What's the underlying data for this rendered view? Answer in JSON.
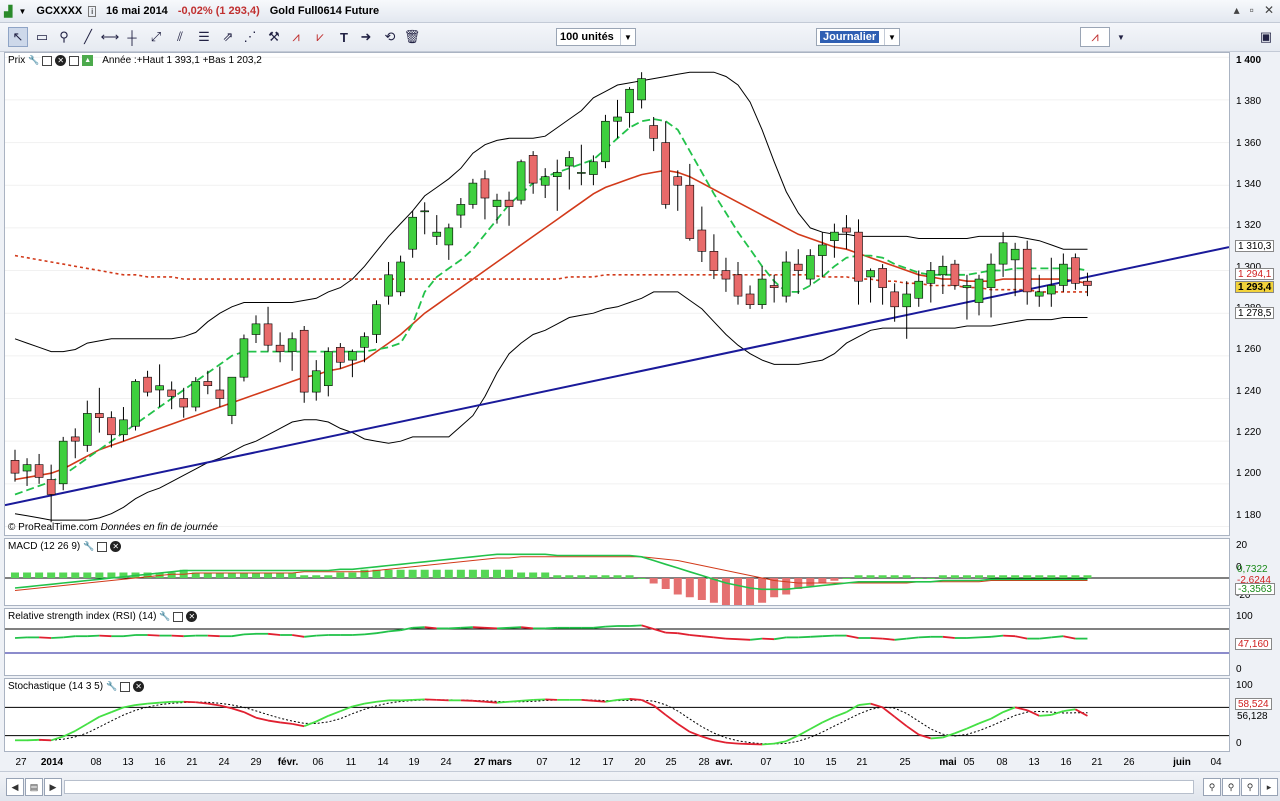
{
  "window": {
    "symbol": "GCXXXX",
    "date": "16 mai 2014",
    "change": "-0,02% (1 293,4)",
    "instrument": "Gold Full0614 Future"
  },
  "toolbar": {
    "units_value": "100 unités",
    "period_value": "Journalier",
    "icons": [
      "pointer-icon",
      "ruler-icon",
      "zoom-icon",
      "line-icon",
      "horizontal-line-icon",
      "trend-line-icon",
      "channel-icon",
      "fibonacci-icon",
      "arrow-icon",
      "fan-icon",
      "hammer-icon",
      "zigzag-icon",
      "pattern-icon",
      "text-icon",
      "arrow-right-icon",
      "lasso-icon",
      "trash-icon"
    ]
  },
  "price_panel": {
    "label": "Prix",
    "legend": "Année :+Haut 1 393,1 +Bas 1 203,2",
    "credit": "© ProRealTime.com",
    "credit_note": "Données en fin de journée",
    "y_ticks": [
      "1 400",
      "1 380",
      "1 360",
      "1 340",
      "1 320",
      "1 300",
      "1 280",
      "1 260",
      "1 240",
      "1 220",
      "1 200",
      "1 180"
    ],
    "tags": [
      {
        "text": "1 310,3",
        "bg": "#ffffff",
        "fg": "#000000"
      },
      {
        "text": "1 294,1",
        "bg": "#ffffff",
        "fg": "#d02020"
      },
      {
        "text": "1 293,4",
        "bg": "#f2d23a",
        "fg": "#000000"
      },
      {
        "text": "1 278,5",
        "bg": "#ffffff",
        "fg": "#000000"
      }
    ]
  },
  "macd_panel": {
    "label": "MACD (12 26 9)",
    "y_ticks": [
      "20",
      "0",
      "-20"
    ],
    "tags": [
      {
        "text": "0,7322",
        "fg": "#1a8a1a"
      },
      {
        "text": "-2,6244",
        "fg": "#d02020"
      },
      {
        "text": "-3,3563",
        "fg": "#1a8a1a"
      }
    ]
  },
  "rsi_panel": {
    "label": "Relative strength index (RSI) (14)",
    "y_ticks": [
      "100",
      "0"
    ],
    "tags": [
      {
        "text": "47,160",
        "fg": "#d02020"
      }
    ]
  },
  "stoch_panel": {
    "label": "Stochastique (14 3 5)",
    "y_ticks": [
      "100",
      "0"
    ],
    "tags": [
      {
        "text": "58,524",
        "fg": "#d02020"
      },
      {
        "text": "56,128",
        "fg": "#000000"
      }
    ]
  },
  "x_axis": {
    "labels": [
      "27",
      "2014",
      "08",
      "13",
      "16",
      "21",
      "24",
      "29",
      "févr.",
      "06",
      "11",
      "14",
      "19",
      "24",
      "27 mars",
      "07",
      "12",
      "17",
      "20",
      "25",
      "28",
      "avr.",
      "07",
      "10",
      "15",
      "21",
      "25",
      "mai",
      "05",
      "08",
      "13",
      "16",
      "21",
      "26",
      "juin",
      "04"
    ]
  },
  "bottom_icons": [
    "scroll-left-icon",
    "pan-icon",
    "scroll-right-icon",
    "zoom-out-icon",
    "zoom-reset-icon",
    "zoom-in-icon",
    "rewind-icon",
    "fast-forward-icon"
  ],
  "colors": {
    "up": "#3ecf3e",
    "down": "#e86a6a",
    "trendline": "#1a1a9a",
    "ma_red": "#d23a1a",
    "ma_green": "#22c24a",
    "bollinger": "#000000"
  },
  "chart_data": {
    "type": "candlestick",
    "ylim": [
      1176,
      1402
    ],
    "candles": [
      [
        1211,
        1216,
        1201,
        1205
      ],
      [
        1206,
        1212,
        1199,
        1209
      ],
      [
        1209,
        1214,
        1200,
        1203
      ],
      [
        1202,
        1209,
        1182,
        1195
      ],
      [
        1200,
        1222,
        1197,
        1220
      ],
      [
        1222,
        1226,
        1212,
        1220
      ],
      [
        1218,
        1239,
        1215,
        1233
      ],
      [
        1233,
        1245,
        1224,
        1231
      ],
      [
        1231,
        1234,
        1217,
        1223
      ],
      [
        1223,
        1236,
        1220,
        1230
      ],
      [
        1227,
        1249,
        1225,
        1248
      ],
      [
        1250,
        1253,
        1241,
        1243
      ],
      [
        1244,
        1256,
        1236,
        1246
      ],
      [
        1244,
        1248,
        1235,
        1241
      ],
      [
        1240,
        1245,
        1231,
        1236
      ],
      [
        1236,
        1250,
        1234,
        1248
      ],
      [
        1248,
        1253,
        1242,
        1246
      ],
      [
        1244,
        1255,
        1236,
        1240
      ],
      [
        1232,
        1250,
        1228,
        1250
      ],
      [
        1250,
        1270,
        1248,
        1268
      ],
      [
        1270,
        1279,
        1266,
        1275
      ],
      [
        1275,
        1283,
        1262,
        1265
      ],
      [
        1265,
        1271,
        1257,
        1262
      ],
      [
        1262,
        1271,
        1253,
        1268
      ],
      [
        1272,
        1274,
        1238,
        1243
      ],
      [
        1243,
        1258,
        1239,
        1253
      ],
      [
        1246,
        1264,
        1241,
        1262
      ],
      [
        1264,
        1266,
        1254,
        1257
      ],
      [
        1258,
        1263,
        1250,
        1262
      ],
      [
        1264,
        1271,
        1257,
        1269
      ],
      [
        1270,
        1286,
        1266,
        1284
      ],
      [
        1288,
        1304,
        1284,
        1298
      ],
      [
        1290,
        1307,
        1288,
        1304
      ],
      [
        1310,
        1328,
        1306,
        1325
      ],
      [
        1328,
        1332,
        1317,
        1328
      ],
      [
        1316,
        1326,
        1312,
        1318
      ],
      [
        1312,
        1322,
        1305,
        1320
      ],
      [
        1326,
        1334,
        1320,
        1331
      ],
      [
        1331,
        1343,
        1329,
        1341
      ],
      [
        1343,
        1347,
        1324,
        1334
      ],
      [
        1330,
        1336,
        1322,
        1333
      ],
      [
        1333,
        1337,
        1321,
        1330
      ],
      [
        1333,
        1352,
        1331,
        1351
      ],
      [
        1354,
        1356,
        1336,
        1341
      ],
      [
        1340,
        1348,
        1334,
        1344
      ],
      [
        1344,
        1352,
        1328,
        1346
      ],
      [
        1349,
        1356,
        1338,
        1353
      ],
      [
        1346,
        1359,
        1340,
        1346
      ],
      [
        1345,
        1354,
        1340,
        1351
      ],
      [
        1351,
        1373,
        1348,
        1370
      ],
      [
        1370,
        1380,
        1362,
        1372
      ],
      [
        1374,
        1386,
        1367,
        1385
      ],
      [
        1380,
        1393,
        1376,
        1390
      ],
      [
        1368,
        1372,
        1356,
        1362
      ],
      [
        1360,
        1370,
        1329,
        1331
      ],
      [
        1344,
        1347,
        1328,
        1340
      ],
      [
        1340,
        1350,
        1314,
        1315
      ],
      [
        1319,
        1330,
        1304,
        1309
      ],
      [
        1309,
        1317,
        1296,
        1300
      ],
      [
        1300,
        1306,
        1290,
        1296
      ],
      [
        1298,
        1304,
        1284,
        1288
      ],
      [
        1289,
        1293,
        1282,
        1284
      ],
      [
        1284,
        1302,
        1282,
        1296
      ],
      [
        1293,
        1298,
        1285,
        1292
      ],
      [
        1288,
        1309,
        1285,
        1304
      ],
      [
        1303,
        1310,
        1289,
        1300
      ],
      [
        1296,
        1310,
        1293,
        1307
      ],
      [
        1307,
        1318,
        1297,
        1312
      ],
      [
        1314,
        1322,
        1306,
        1318
      ],
      [
        1320,
        1326,
        1310,
        1318
      ],
      [
        1318,
        1324,
        1284,
        1295
      ],
      [
        1297,
        1301,
        1285,
        1300
      ],
      [
        1301,
        1303,
        1284,
        1292
      ],
      [
        1290,
        1294,
        1276,
        1283
      ],
      [
        1283,
        1295,
        1268,
        1289
      ],
      [
        1287,
        1300,
        1283,
        1295
      ],
      [
        1294,
        1304,
        1285,
        1300
      ],
      [
        1298,
        1307,
        1289,
        1302
      ],
      [
        1303,
        1305,
        1291,
        1293
      ],
      [
        1292,
        1298,
        1277,
        1293
      ],
      [
        1285,
        1298,
        1279,
        1296
      ],
      [
        1292,
        1308,
        1278,
        1303
      ],
      [
        1303,
        1318,
        1297,
        1313
      ],
      [
        1305,
        1313,
        1288,
        1310
      ],
      [
        1310,
        1314,
        1284,
        1290
      ],
      [
        1288,
        1298,
        1283,
        1290
      ],
      [
        1289,
        1306,
        1283,
        1293
      ],
      [
        1293,
        1308,
        1290,
        1303
      ],
      [
        1306,
        1308,
        1291,
        1294
      ],
      [
        1295,
        1299,
        1288,
        1293
      ]
    ],
    "bollinger_upper": [
      1268,
      1266,
      1264,
      1262,
      1262,
      1263,
      1266,
      1267,
      1268,
      1268,
      1268,
      1268,
      1268,
      1268,
      1269,
      1271,
      1276,
      1280,
      1283,
      1285,
      1285,
      1285,
      1285,
      1285,
      1286,
      1287,
      1290,
      1292,
      1296,
      1302,
      1309,
      1316,
      1322,
      1328,
      1335,
      1339,
      1343,
      1348,
      1355,
      1359,
      1361,
      1362,
      1362,
      1362,
      1363,
      1367,
      1371,
      1375,
      1381,
      1384,
      1387,
      1388,
      1389,
      1390,
      1391,
      1392,
      1393,
      1393,
      1393,
      1391,
      1387,
      1379,
      1366,
      1351,
      1337,
      1327,
      1320,
      1318,
      1317,
      1317,
      1316,
      1316,
      1316,
      1316,
      1316,
      1315,
      1315,
      1315,
      1315,
      1315,
      1316,
      1316,
      1316,
      1316,
      1315,
      1314,
      1312,
      1310,
      1310,
      1310
    ],
    "bollinger_lower": [
      1186,
      1185,
      1184,
      1183,
      1183,
      1183,
      1183,
      1184,
      1186,
      1189,
      1193,
      1196,
      1198,
      1201,
      1204,
      1207,
      1210,
      1212,
      1215,
      1218,
      1220,
      1223,
      1226,
      1229,
      1230,
      1230,
      1229,
      1226,
      1224,
      1221,
      1220,
      1219,
      1220,
      1222,
      1222,
      1222,
      1222,
      1227,
      1232,
      1241,
      1252,
      1261,
      1266,
      1270,
      1272,
      1275,
      1278,
      1279,
      1280,
      1282,
      1283,
      1285,
      1287,
      1290,
      1290,
      1290,
      1286,
      1282,
      1276,
      1270,
      1265,
      1261,
      1258,
      1256,
      1256,
      1256,
      1257,
      1258,
      1261,
      1266,
      1269,
      1272,
      1273,
      1273,
      1273,
      1273,
      1273,
      1273,
      1273,
      1274,
      1274,
      1274,
      1275,
      1276,
      1277,
      1277,
      1277,
      1278,
      1278,
      1278
    ],
    "ma20": [
      1202,
      1203,
      1204,
      1205,
      1207,
      1210,
      1213,
      1216,
      1218,
      1220,
      1222,
      1224,
      1226,
      1228,
      1230,
      1232,
      1234,
      1236,
      1238,
      1240,
      1242,
      1244,
      1246,
      1248,
      1250,
      1251,
      1253,
      1254,
      1256,
      1258,
      1262,
      1266,
      1270,
      1275,
      1280,
      1284,
      1288,
      1292,
      1296,
      1300,
      1304,
      1308,
      1312,
      1316,
      1320,
      1324,
      1328,
      1332,
      1336,
      1339,
      1341,
      1343,
      1345,
      1346,
      1347,
      1346,
      1344,
      1341,
      1338,
      1335,
      1332,
      1329,
      1326,
      1323,
      1320,
      1317,
      1315,
      1313,
      1311,
      1310,
      1308,
      1306,
      1304,
      1302,
      1300,
      1298,
      1297,
      1296,
      1296,
      1295,
      1295,
      1295,
      1296,
      1296,
      1296,
      1296,
      1296,
      1296,
      1295,
      1294
    ],
    "ma10": [
      1195,
      1197,
      1199,
      1201,
      1204,
      1208,
      1212,
      1216,
      1220,
      1224,
      1228,
      1232,
      1236,
      1240,
      1244,
      1248,
      1252,
      1256,
      1260,
      1262,
      1262,
      1262,
      1262,
      1262,
      1262,
      1262,
      1262,
      1262,
      1262,
      1262,
      1263,
      1264,
      1266,
      1275,
      1290,
      1297,
      1301,
      1305,
      1310,
      1317,
      1324,
      1331,
      1336,
      1341,
      1344,
      1346,
      1348,
      1350,
      1352,
      1357,
      1362,
      1367,
      1370,
      1371,
      1370,
      1366,
      1356,
      1346,
      1336,
      1327,
      1318,
      1310,
      1302,
      1295,
      1290,
      1290,
      1293,
      1297,
      1302,
      1306,
      1307,
      1307,
      1306,
      1303,
      1301,
      1299,
      1298,
      1298,
      1298,
      1298,
      1299,
      1300,
      1300,
      1301,
      1301,
      1301,
      1301,
      1301,
      1301,
      1300
    ],
    "ma200": [
      1307,
      1306,
      1305,
      1304,
      1303,
      1302,
      1301,
      1300,
      1299,
      1298,
      1298,
      1297,
      1297,
      1297,
      1296,
      1296,
      1296,
      1296,
      1296,
      1296,
      1296,
      1296,
      1296,
      1296,
      1296,
      1296,
      1296,
      1296,
      1296,
      1296,
      1296,
      1296,
      1296,
      1296,
      1296,
      1296,
      1296,
      1296,
      1296,
      1296,
      1296,
      1296,
      1296,
      1296,
      1296,
      1296,
      1297,
      1297,
      1297,
      1298,
      1298,
      1298,
      1298,
      1298,
      1298,
      1298,
      1298,
      1298,
      1298,
      1298,
      1298,
      1298,
      1298,
      1298,
      1298,
      1298,
      1298,
      1297,
      1297,
      1297,
      1296,
      1296,
      1295,
      1295,
      1294,
      1294,
      1293,
      1293,
      1293,
      1292,
      1292,
      1291,
      1291,
      1291,
      1291,
      1290,
      1290,
      1290,
      1290,
      1290
    ],
    "trendline": [
      [
        0,
        1191
      ],
      [
        89,
        1297
      ]
    ],
    "macd": [
      -8,
      -7,
      -6,
      -5,
      -4,
      -3,
      -2,
      -1,
      0,
      1,
      2,
      3,
      4,
      5,
      6,
      6,
      6,
      6,
      6,
      6,
      6,
      6,
      6,
      6,
      6,
      6,
      6,
      7,
      7,
      8,
      9,
      10,
      11,
      12,
      13,
      14,
      15,
      16,
      17,
      18,
      19,
      19,
      19,
      19,
      19,
      18,
      18,
      18,
      18,
      18,
      18,
      18,
      17,
      14,
      11,
      8,
      5,
      2,
      -1,
      -4,
      -6,
      -8,
      -9,
      -9,
      -9,
      -8,
      -7,
      -6,
      -5,
      -4,
      -3,
      -3,
      -3,
      -3,
      -3,
      -3,
      -3,
      -2,
      -2,
      -2,
      -2,
      -1,
      -1,
      -1,
      -1,
      -1,
      -1,
      -1,
      -1,
      -1
    ],
    "macd_signal": [
      -10,
      -9,
      -8,
      -7,
      -6,
      -5,
      -4,
      -3,
      -2,
      -1,
      0,
      1,
      2,
      3,
      3,
      4,
      4,
      4,
      4,
      4,
      4,
      4,
      4,
      4,
      5,
      5,
      5,
      5,
      5,
      5,
      6,
      7,
      8,
      9,
      10,
      11,
      12,
      13,
      14,
      15,
      16,
      16,
      17,
      17,
      17,
      17,
      17,
      17,
      17,
      17,
      17,
      17,
      17,
      16,
      15,
      14,
      12,
      10,
      8,
      6,
      4,
      2,
      0,
      -2,
      -3,
      -4,
      -4,
      -4,
      -4,
      -4,
      -4,
      -4,
      -4,
      -4,
      -4,
      -3,
      -3,
      -3,
      -3,
      -3,
      -3,
      -2,
      -2,
      -2,
      -2,
      -2,
      -2,
      -2,
      -2,
      -2
    ],
    "rsi": [
      55,
      56,
      56,
      55,
      56,
      58,
      58,
      59,
      58,
      58,
      60,
      60,
      59,
      59,
      58,
      59,
      59,
      58,
      58,
      61,
      62,
      62,
      60,
      60,
      57,
      59,
      60,
      60,
      60,
      61,
      63,
      66,
      68,
      72,
      73,
      71,
      71,
      72,
      73,
      72,
      71,
      72,
      73,
      71,
      71,
      72,
      72,
      72,
      72,
      74,
      75,
      75,
      76,
      70,
      64,
      63,
      60,
      58,
      56,
      54,
      53,
      52,
      54,
      53,
      56,
      56,
      57,
      58,
      59,
      59,
      55,
      55,
      54,
      52,
      54,
      56,
      57,
      57,
      55,
      55,
      56,
      57,
      59,
      58,
      54,
      54,
      56,
      58,
      54,
      54
    ],
    "stoch_k": [
      10,
      10,
      11,
      10,
      18,
      30,
      45,
      60,
      70,
      80,
      85,
      88,
      90,
      92,
      92,
      91,
      88,
      84,
      78,
      70,
      58,
      52,
      48,
      45,
      40,
      50,
      62,
      72,
      82,
      88,
      92,
      95,
      95,
      96,
      97,
      96,
      95,
      95,
      94,
      92,
      90,
      92,
      94,
      96,
      97,
      96,
      96,
      96,
      94,
      92,
      96,
      98,
      96,
      84,
      64,
      45,
      28,
      18,
      10,
      5,
      3,
      2,
      1,
      3,
      8,
      20,
      34,
      48,
      60,
      70,
      85,
      88,
      80,
      60,
      40,
      22,
      14,
      16,
      25,
      35,
      46,
      56,
      70,
      80,
      74,
      62,
      64,
      72,
      76,
      62
    ]
  }
}
